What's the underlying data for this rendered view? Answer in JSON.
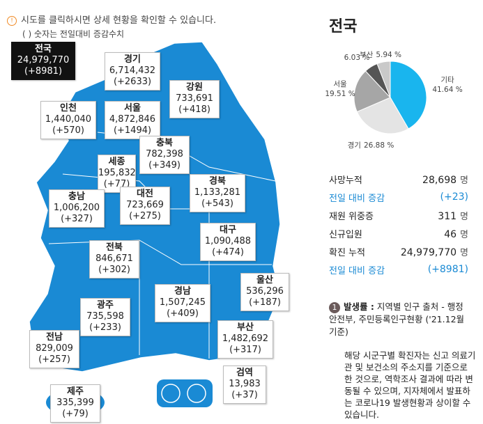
{
  "notice": {
    "text": "시도를 클릭하시면 상세 현황을 확인할 수 있습니다.",
    "sub": "( ) 숫자는 전일대비 증감수치"
  },
  "regions": [
    {
      "name": "전국",
      "total": "24,979,770",
      "change": "(+8981)"
    },
    {
      "name": "경기",
      "total": "6,714,432",
      "change": "(+2633)"
    },
    {
      "name": "강원",
      "total": "733,691",
      "change": "(+418)"
    },
    {
      "name": "인천",
      "total": "1,440,040",
      "change": "(+570)"
    },
    {
      "name": "서울",
      "total": "4,872,846",
      "change": "(+1494)"
    },
    {
      "name": "충북",
      "total": "782,398",
      "change": "(+349)"
    },
    {
      "name": "세종",
      "total": "195,832",
      "change": "(+77)"
    },
    {
      "name": "경북",
      "total": "1,133,281",
      "change": "(+543)"
    },
    {
      "name": "충남",
      "total": "1,006,200",
      "change": "(+327)"
    },
    {
      "name": "대전",
      "total": "723,669",
      "change": "(+275)"
    },
    {
      "name": "대구",
      "total": "1,090,488",
      "change": "(+474)"
    },
    {
      "name": "전북",
      "total": "846,671",
      "change": "(+302)"
    },
    {
      "name": "울산",
      "total": "536,296",
      "change": "(+187)"
    },
    {
      "name": "경남",
      "total": "1,507,245",
      "change": "(+409)"
    },
    {
      "name": "광주",
      "total": "735,598",
      "change": "(+233)"
    },
    {
      "name": "부산",
      "total": "1,482,692",
      "change": "(+317)"
    },
    {
      "name": "전남",
      "total": "829,009",
      "change": "(+257)"
    },
    {
      "name": "검역",
      "total": "13,983",
      "change": "(+37)"
    },
    {
      "name": "제주",
      "total": "335,399",
      "change": "(+79)"
    }
  ],
  "panel": {
    "title": "전국",
    "pie": {
      "type": "pie",
      "slices": [
        {
          "name": "기타",
          "value": 41.64,
          "label": "41.64 %",
          "color": "#19b5ee"
        },
        {
          "name": "경기",
          "value": 26.88,
          "label": "26.88 %",
          "color": "#e4e4e4"
        },
        {
          "name": "서울",
          "value": 19.51,
          "label": "19.51 %",
          "color": "#a6a6a6"
        },
        {
          "name": null,
          "value": 6.03,
          "label": "6.03 %",
          "color": "#555555"
        },
        {
          "name": "부산",
          "value": 5.94,
          "label": "5.94 %",
          "color": "#c9c9c9"
        }
      ]
    },
    "stats": [
      {
        "label": "사망누적",
        "value": "28,698",
        "unit": "명"
      },
      {
        "label": "전일 대비 증감",
        "value": "(+23)",
        "color": "#1a8ad4"
      },
      {
        "label": "재원 위중증",
        "value": "311",
        "unit": "명"
      },
      {
        "label": "신규입원",
        "value": "46",
        "unit": "명"
      },
      {
        "label": "확진 누적",
        "value": "24,979,770",
        "unit": "명"
      },
      {
        "label": "전일 대비 증감",
        "value": "(+8981)",
        "color": "#1a8ad4"
      }
    ],
    "note": {
      "number": "1",
      "title": "발생률 :",
      "text": "지역별 인구 출처 - 행정안전부, 주민등록인구현황 ('21.12월 기준)"
    },
    "disclaimer": "해당 시군구별 확진자는 신고 의료기관 및 보건소의 주소지를 기준으로 한 것으로, 역학조사 결과에 따라 변동될 수 있으며, 지자체에서 발표하는 코로나19 발생현황과 상이할 수 있습니다."
  }
}
